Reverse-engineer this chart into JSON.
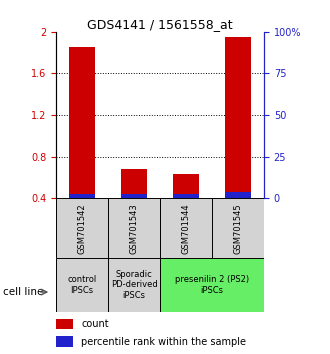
{
  "title": "GDS4141 / 1561558_at",
  "samples": [
    "GSM701542",
    "GSM701543",
    "GSM701544",
    "GSM701545"
  ],
  "red_values": [
    1.85,
    0.68,
    0.63,
    1.95
  ],
  "blue_values": [
    0.445,
    0.436,
    0.436,
    0.462
  ],
  "bar_bottom": 0.4,
  "ylim": [
    0.4,
    2.0
  ],
  "yticks_left": [
    0.4,
    0.8,
    1.2,
    1.6,
    2.0
  ],
  "yticks_left_labels": [
    "0.4",
    "0.8",
    "1.2",
    "1.6",
    "2"
  ],
  "yticks_right_pos": [
    0.4,
    0.8,
    1.2,
    1.6,
    2.0
  ],
  "yticks_right_labels": [
    "0",
    "25",
    "50",
    "75",
    "100%"
  ],
  "red_color": "#cc0000",
  "blue_color": "#2222cc",
  "left_tick_color": "#cc0000",
  "right_tick_color": "#2222cc",
  "bar_width": 0.5,
  "group_labels": [
    "control\nIPSCs",
    "Sporadic\nPD-derived\niPSCs",
    "presenilin 2 (PS2)\niPSCs"
  ],
  "group_colors": [
    "#d3d3d3",
    "#d3d3d3",
    "#66ee66"
  ],
  "cell_line_label": "cell line",
  "legend_count": "count",
  "legend_pct": "percentile rank within the sample"
}
